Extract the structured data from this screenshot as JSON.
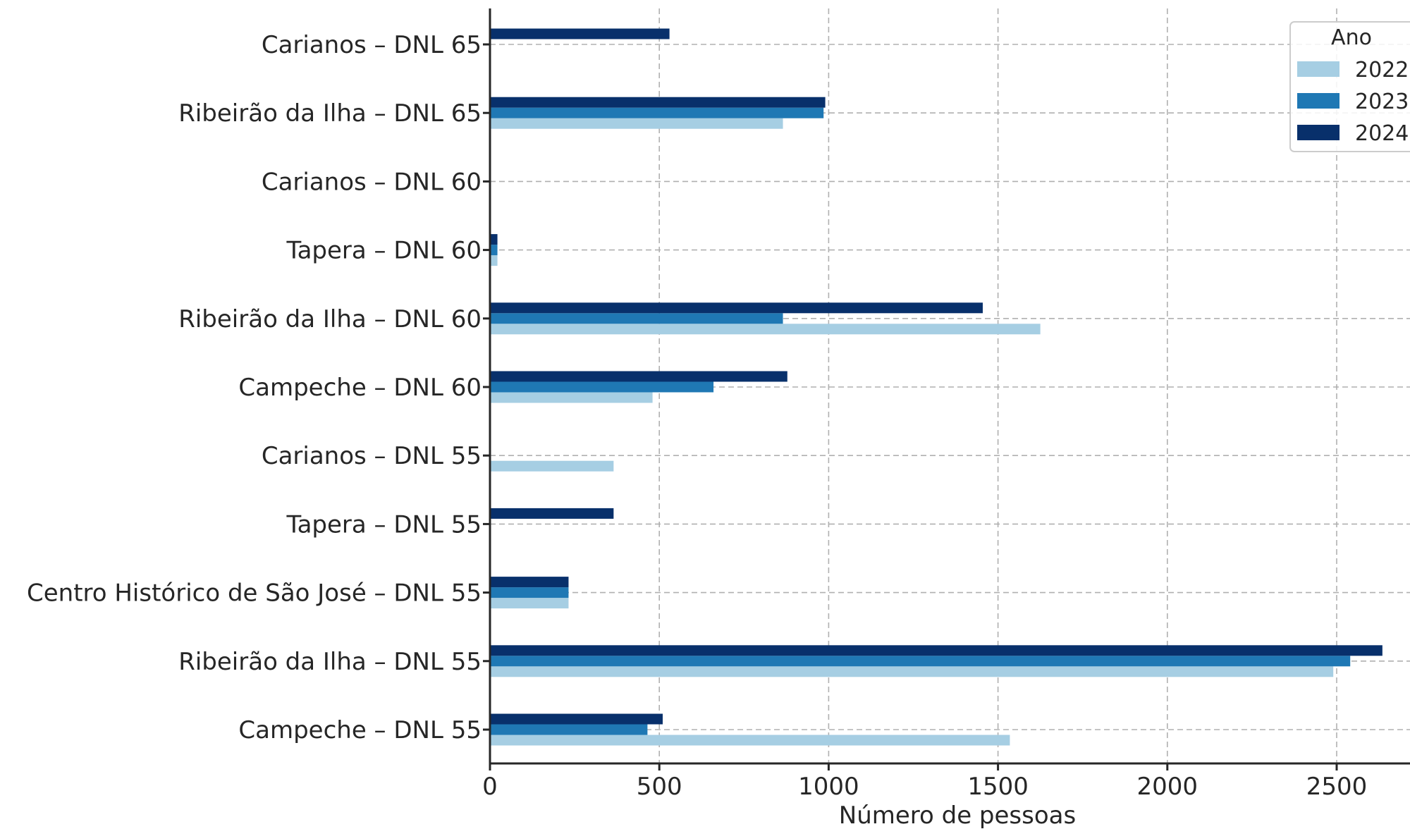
{
  "chart_data": {
    "type": "bar",
    "orientation": "horizontal",
    "title": "",
    "xlabel": "Número de pessoas",
    "ylabel": "",
    "xlim": [
      0,
      2700
    ],
    "xticks": [
      0,
      500,
      1000,
      1500,
      2000,
      2500
    ],
    "xtick_labels": [
      "0",
      "500",
      "1000",
      "1500",
      "2000",
      "2500"
    ],
    "grid": true,
    "legend": {
      "title": "Ano",
      "placement": "top-right"
    },
    "categories": [
      "Carianos – DNL 65",
      "Ribeirão da Ilha – DNL 65",
      "Carianos – DNL 60",
      "Tapera – DNL 60",
      "Ribeirão da Ilha – DNL 60",
      "Campeche – DNL 60",
      "Carianos – DNL 55",
      "Tapera – DNL 55",
      "Centro Histórico de São José – DNL 55",
      "Ribeirão da Ilha – DNL 55",
      "Campeche – DNL 55"
    ],
    "series": [
      {
        "name": "2022",
        "color": "#a6cee3",
        "values": [
          0,
          865,
          0,
          22,
          1625,
          480,
          365,
          0,
          232,
          2490,
          1535
        ]
      },
      {
        "name": "2023",
        "color": "#1f78b4",
        "values": [
          0,
          985,
          0,
          22,
          865,
          660,
          0,
          0,
          232,
          2540,
          465
        ]
      },
      {
        "name": "2024",
        "color": "#08306b",
        "values": [
          530,
          990,
          0,
          22,
          1455,
          878,
          0,
          365,
          232,
          2635,
          510
        ]
      }
    ]
  }
}
